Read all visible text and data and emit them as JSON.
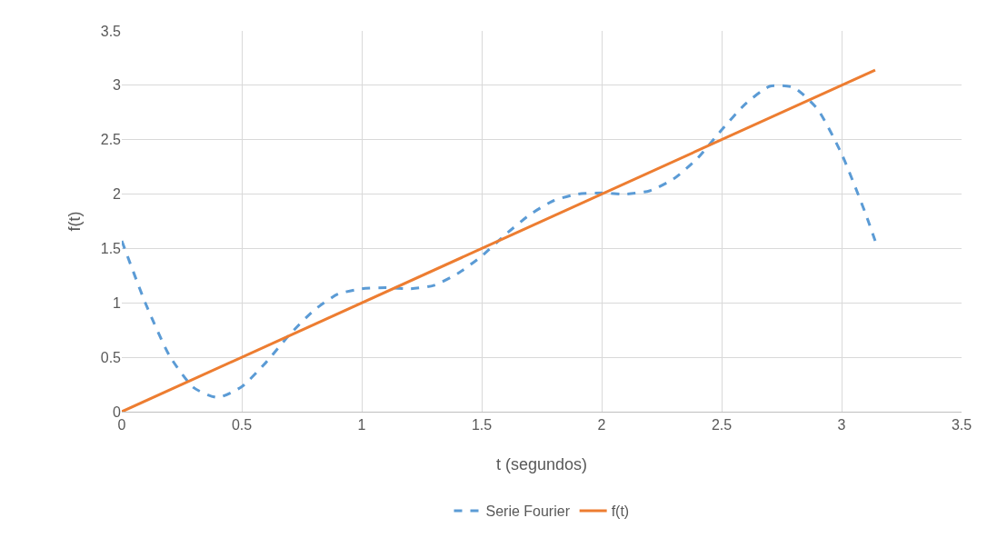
{
  "chart_data": {
    "type": "line",
    "xlabel": "t (segundos)",
    "ylabel": "f(t)",
    "xlim": [
      0,
      3.5
    ],
    "xticks": [
      0,
      0.5,
      1,
      1.5,
      2,
      2.5,
      3,
      3.5
    ],
    "ylim": [
      0,
      3.5
    ],
    "yticks": [
      0,
      0.5,
      1,
      1.5,
      2,
      2.5,
      3,
      3.5
    ],
    "grid": true,
    "legend": "bottom",
    "marker": "none",
    "series": [
      {
        "name": "Serie Fourier",
        "color": "#5b9bd5",
        "line_style": "dashed",
        "x": [
          0,
          0.1,
          0.2,
          0.3,
          0.4,
          0.5,
          0.6,
          0.7,
          0.8,
          0.9,
          1.0,
          1.1,
          1.2,
          1.3,
          1.4,
          1.5,
          1.6,
          1.7,
          1.8,
          1.9,
          2.0,
          2.1,
          2.2,
          2.3,
          2.4,
          2.5,
          2.6,
          2.7,
          2.8,
          2.9,
          3.0,
          3.1,
          3.14
        ],
        "values": [
          1.57,
          0.99,
          0.51,
          0.22,
          0.13,
          0.23,
          0.45,
          0.71,
          0.93,
          1.08,
          1.13,
          1.14,
          1.13,
          1.16,
          1.27,
          1.43,
          1.63,
          1.81,
          1.94,
          2.0,
          2.01,
          2.0,
          2.03,
          2.14,
          2.33,
          2.59,
          2.83,
          2.99,
          2.98,
          2.78,
          2.37,
          1.82,
          1.57
        ]
      },
      {
        "name": "f(t)",
        "color": "#ed7d31",
        "line_style": "solid",
        "x": [
          0,
          3.14
        ],
        "values": [
          0,
          3.14
        ]
      }
    ]
  }
}
